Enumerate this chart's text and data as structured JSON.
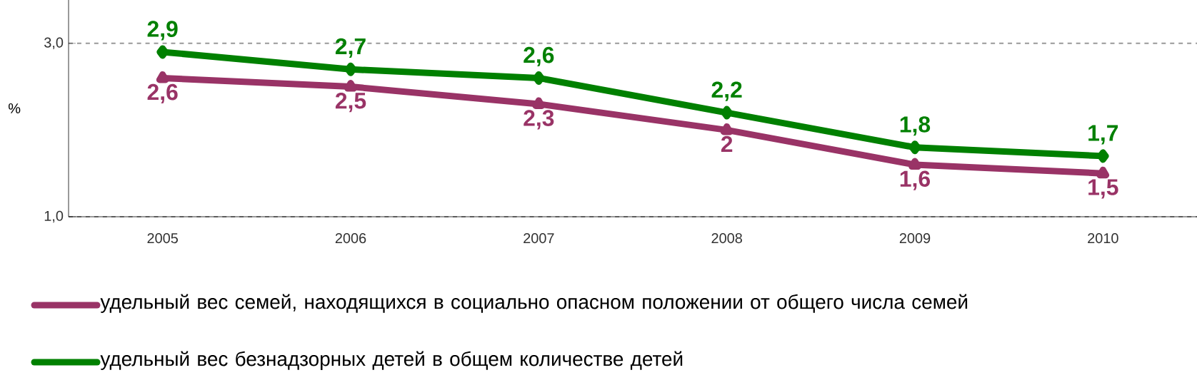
{
  "chart_data": {
    "type": "line",
    "ylabel": "%",
    "categories": [
      "2005",
      "2006",
      "2007",
      "2008",
      "2009",
      "2010"
    ],
    "series": [
      {
        "name": "удельный вес семей, находящихся в социально опасном положении от общего числа семей",
        "color": "#993366",
        "marker": "triangle",
        "values": [
          2.6,
          2.5,
          2.3,
          2.0,
          1.6,
          1.5
        ],
        "value_labels": [
          "2,6",
          "2,5",
          "2,3",
          "2",
          "1,6",
          "1,5"
        ]
      },
      {
        "name": "удельный вес безнадзорных детей в общем количестве детей",
        "color": "#008000",
        "marker": "diamond",
        "values": [
          2.9,
          2.7,
          2.6,
          2.2,
          1.8,
          1.7
        ],
        "value_labels": [
          "2,9",
          "2,7",
          "2,6",
          "2,2",
          "1,8",
          "1,7"
        ]
      }
    ],
    "ylim": [
      1.0,
      3.5
    ],
    "yticks": [
      {
        "value": 1.0,
        "label": "1,0"
      },
      {
        "value": 3.0,
        "label": "3,0"
      }
    ],
    "grid": "y",
    "legend": "bottom",
    "line_style": "solid"
  }
}
